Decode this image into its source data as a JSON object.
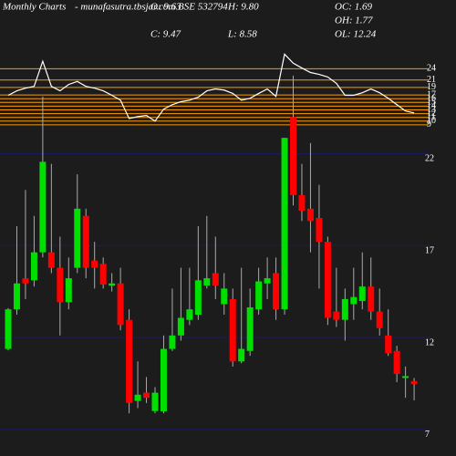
{
  "header": {
    "title": "Monthly Charts",
    "source": "- munafasutra.tbsjar.com BSE 532794",
    "stats": [
      "O: 9.63",
      "H: 9.80",
      "OC: 1.69",
      "C: 9.47",
      "L: 8.58",
      "OH: 1.77",
      "OL: 12.24"
    ]
  },
  "chart_data": [
    {
      "type": "line",
      "color": "#ffffff",
      "grid_color": "#ff9900",
      "values": [
        16.9,
        18.1,
        18.8,
        19.3,
        26.0,
        19.3,
        18.1,
        19.8,
        20.6,
        19.3,
        18.8,
        18.1,
        16.9,
        15.6,
        10.7,
        11.2,
        11.5,
        10.0,
        13.2,
        14.4,
        15.2,
        15.6,
        16.4,
        18.1,
        18.6,
        18.3,
        17.4,
        15.6,
        16.1,
        17.4,
        18.6,
        16.6,
        27.9,
        25.5,
        24.2,
        23.0,
        22.5,
        21.8,
        20.1,
        16.9,
        16.9,
        17.6,
        18.6,
        17.6,
        16.1,
        14.4,
        12.7,
        12.2
      ],
      "ylim": [
        8,
        28
      ],
      "yticks": [
        24,
        21,
        19,
        17,
        16,
        15,
        14,
        13,
        12,
        11,
        10,
        9
      ]
    },
    {
      "type": "candlestick",
      "up_color": "#00e000",
      "down_color": "#ff0000",
      "wick_color": "#aaaaaa",
      "grid_color": "#1a1a66",
      "open": [
        11.38,
        13.53,
        15.22,
        15.11,
        16.63,
        16.63,
        15.79,
        13.92,
        15.79,
        18.61,
        16.18,
        16.01,
        14.82,
        14.94,
        12.96,
        8.55,
        9.0,
        8.0,
        7.99,
        11.38,
        12.11,
        12.96,
        13.24,
        14.82,
        15.5,
        13.81,
        14.09,
        10.7,
        11.27,
        13.53,
        14.94,
        15.5,
        13.53,
        23.98,
        19.74,
        19.0,
        18.5,
        17.2,
        13.41,
        12.96,
        13.81,
        13.98,
        14.77,
        13.41,
        12.11,
        11.27,
        9.8,
        9.63
      ],
      "close": [
        13.53,
        14.94,
        14.94,
        16.63,
        21.55,
        15.79,
        13.92,
        15.22,
        19.0,
        15.79,
        15.79,
        14.88,
        14.94,
        12.68,
        8.44,
        8.89,
        8.72,
        9.0,
        11.38,
        12.11,
        13.07,
        13.53,
        15.11,
        15.22,
        14.82,
        14.66,
        10.7,
        11.38,
        13.64,
        15.05,
        15.22,
        13.53,
        22.85,
        19.74,
        18.89,
        18.33,
        17.2,
        13.07,
        12.96,
        14.09,
        14.2,
        14.77,
        13.41,
        12.51,
        11.15,
        10.02,
        9.9,
        9.47
      ],
      "high": [
        13.6,
        18.05,
        20.02,
        18.61,
        25.1,
        21.44,
        17.48,
        16.35,
        20.87,
        19.0,
        17.2,
        16.35,
        15.5,
        15.79,
        13.53,
        10.7,
        9.85,
        9.3,
        12.11,
        14.66,
        15.79,
        15.79,
        18.05,
        18.61,
        17.48,
        15.5,
        14.66,
        15.79,
        14.66,
        15.79,
        16.35,
        16.35,
        22.85,
        26.24,
        21.44,
        22.57,
        20.3,
        17.48,
        15.79,
        14.66,
        15.79,
        16.63,
        16.35,
        14.66,
        13.53,
        11.55,
        10.42,
        9.8
      ],
      "low": [
        11.3,
        13.24,
        14.09,
        14.77,
        16.35,
        15.5,
        12.11,
        13.53,
        15.5,
        15.22,
        14.66,
        14.66,
        14.5,
        12.39,
        7.88,
        8.16,
        8.44,
        7.88,
        7.88,
        11.27,
        11.83,
        12.68,
        12.96,
        14.66,
        14.09,
        13.24,
        10.42,
        10.6,
        11.0,
        13.24,
        14.09,
        12.96,
        13.24,
        19.18,
        18.33,
        16.63,
        14.66,
        12.68,
        12.57,
        11.83,
        12.96,
        13.53,
        12.96,
        12.11,
        11.0,
        9.57,
        8.72,
        8.58
      ],
      "ylim": [
        6.5,
        24
      ],
      "yticks": [
        22,
        17,
        12,
        7
      ]
    }
  ]
}
